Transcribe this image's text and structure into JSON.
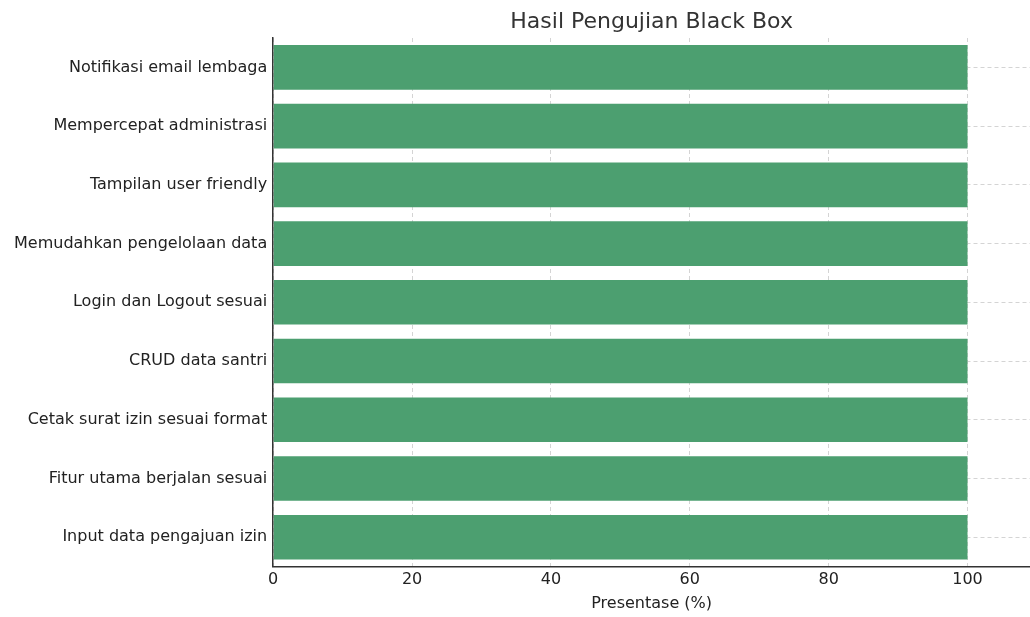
{
  "chart_data": {
    "type": "bar",
    "orientation": "horizontal",
    "title": "Hasil Pengujian Black Box",
    "xlabel": "Presentase (%)",
    "categories": [
      "Notifikasi email lembaga",
      "Mempercepat administrasi",
      "Tampilan user friendly",
      "Memudahkan pengelolaan data",
      "Login dan Logout sesuai",
      "CRUD data santri",
      "Cetak surat izin sesuai format",
      "Fitur utama berjalan sesuai",
      "Input data pengajuan izin"
    ],
    "values": [
      100,
      100,
      100,
      100,
      100,
      100,
      100,
      100,
      100
    ],
    "color": "#4c9f70",
    "xlim": [
      0,
      109
    ],
    "xticks": [
      0,
      20,
      40,
      60,
      80,
      100
    ],
    "grid": true
  }
}
